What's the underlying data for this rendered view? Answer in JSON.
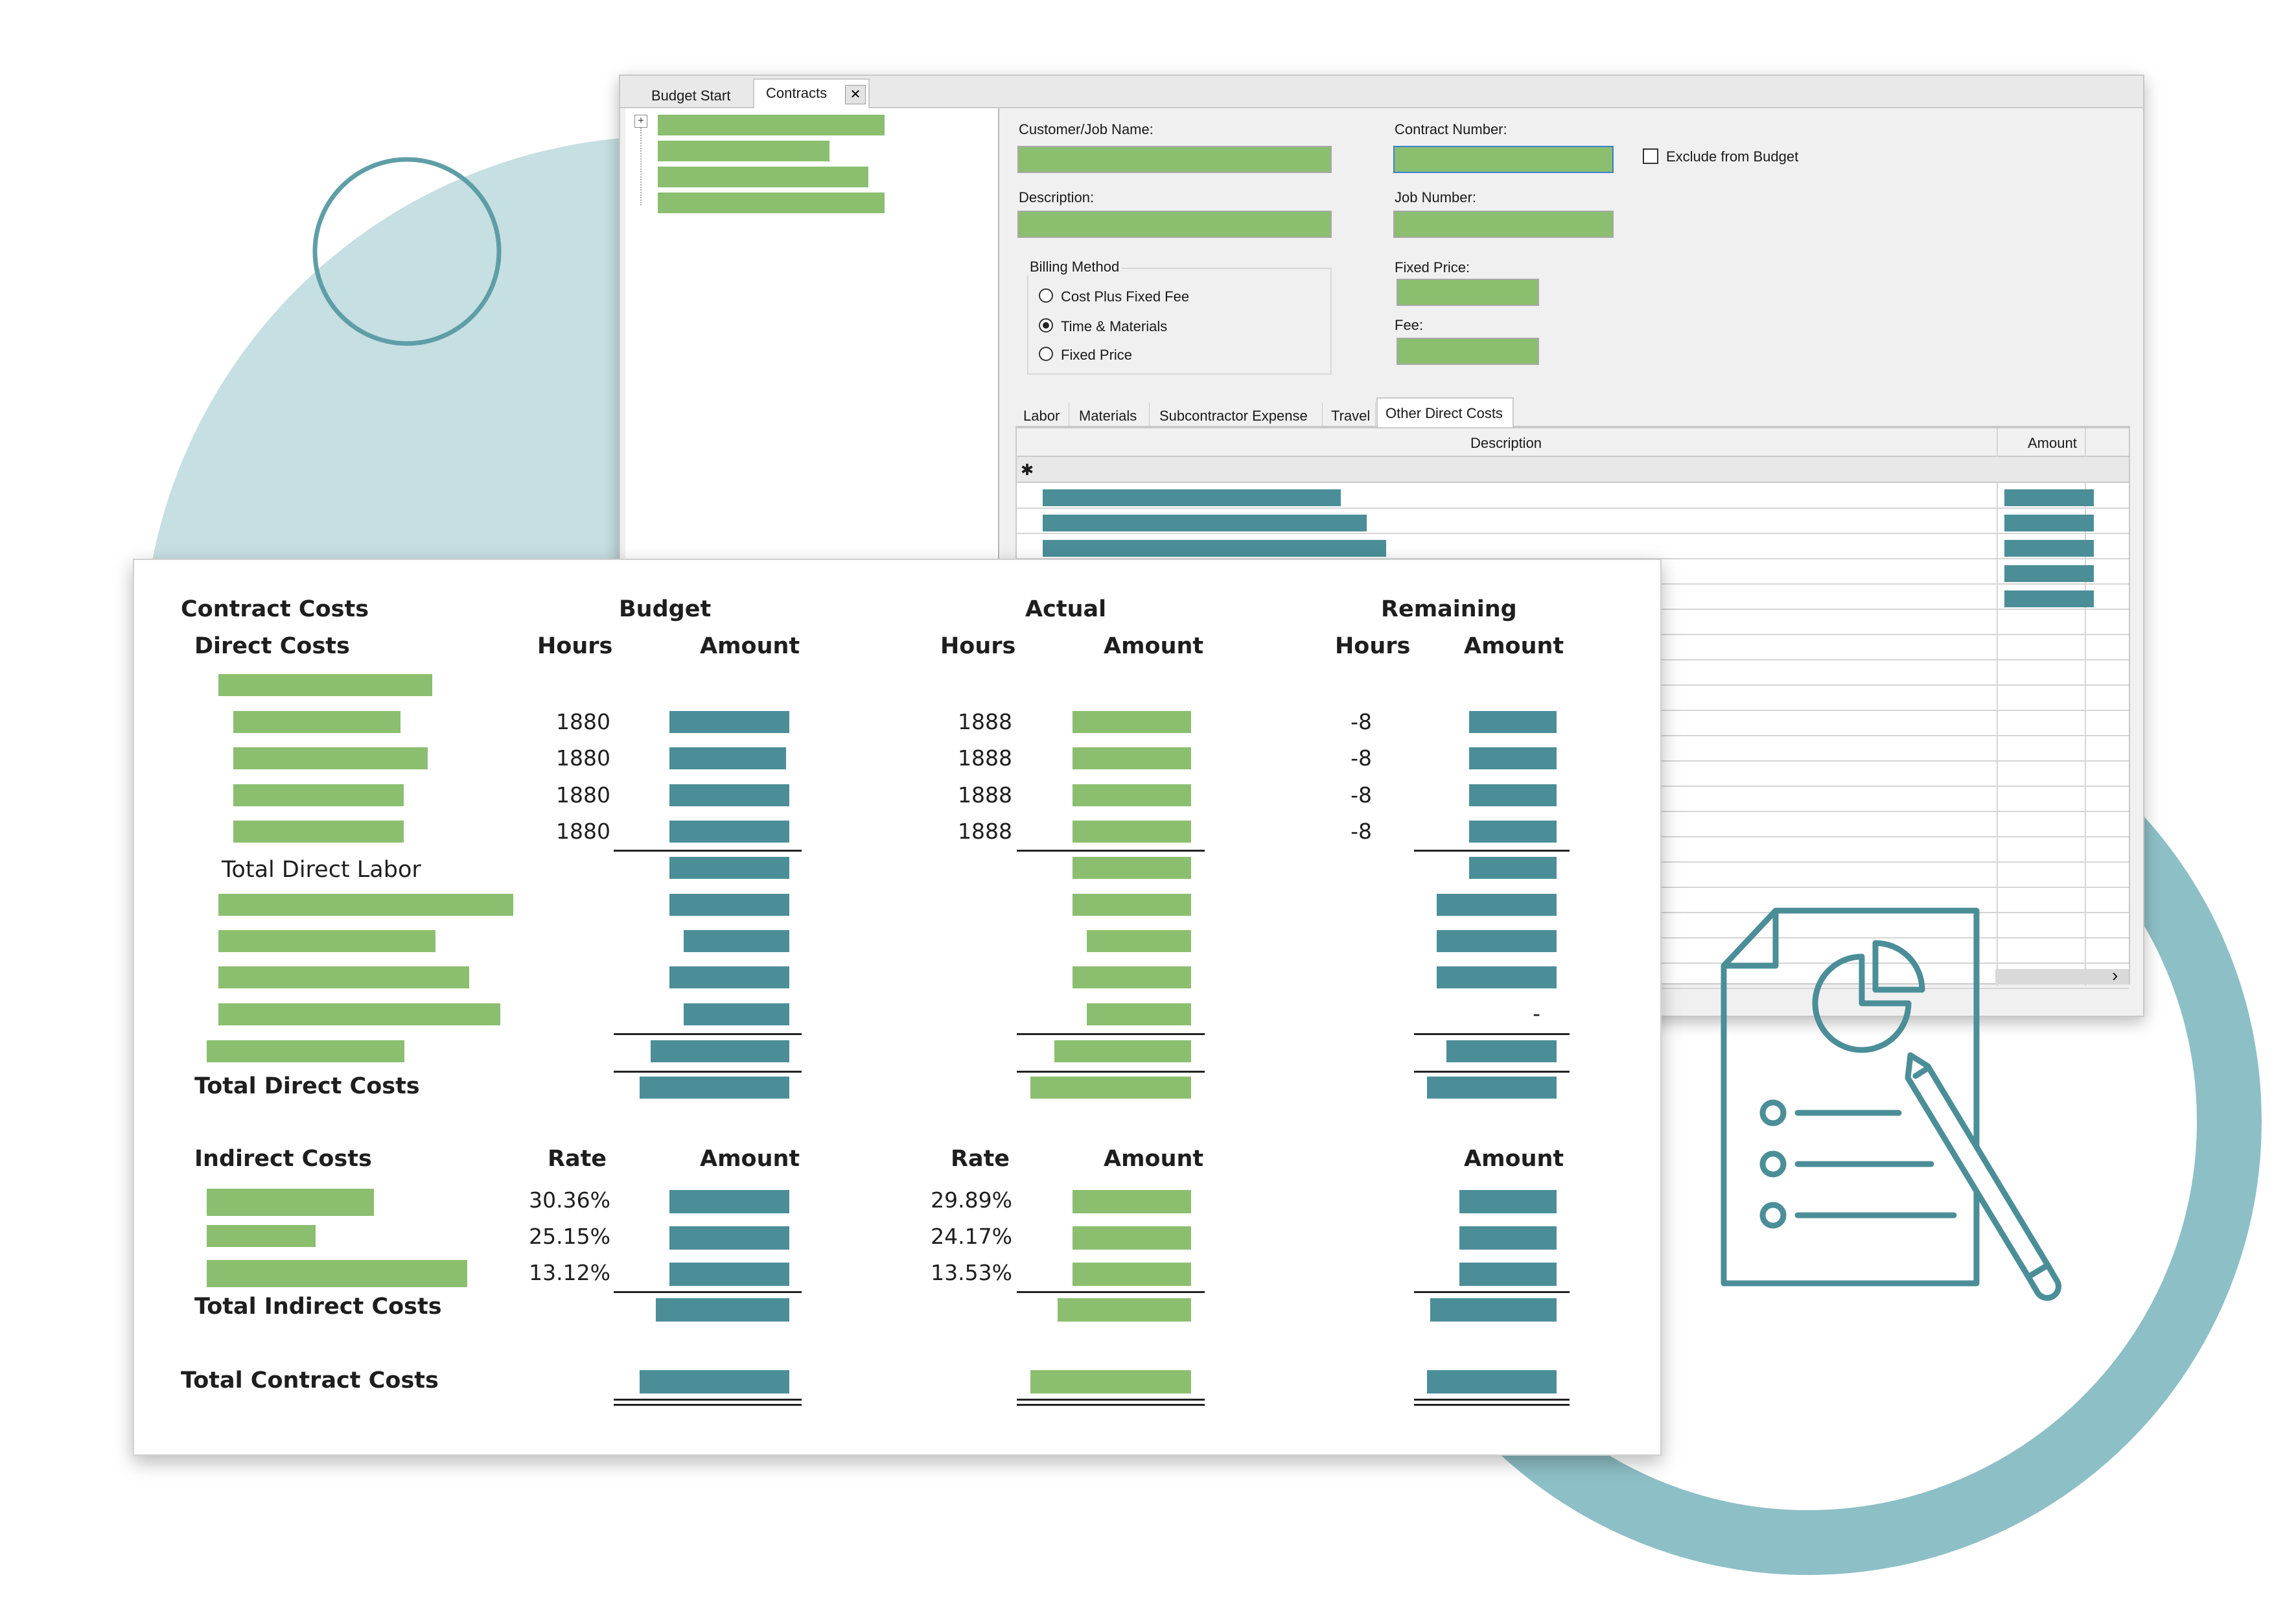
{
  "window": {
    "tabs": [
      {
        "label": "Budget Start"
      },
      {
        "label": "Contracts"
      }
    ],
    "close_glyph": "✕",
    "tree_expand_glyph": "+",
    "form": {
      "customer_job_name_label": "Customer/Job Name:",
      "contract_number_label": "Contract Number:",
      "exclude_from_budget_label": "Exclude from Budget",
      "exclude_from_budget_checked": false,
      "description_label": "Description:",
      "job_number_label": "Job Number:",
      "billing_method_label": "Billing Method",
      "billing_options": [
        {
          "label": "Cost Plus Fixed Fee",
          "selected": false
        },
        {
          "label": "Time & Materials",
          "selected": true
        },
        {
          "label": "Fixed Price",
          "selected": false
        }
      ],
      "fixed_price_label": "Fixed Price:",
      "fee_label": "Fee:"
    },
    "cost_tabs": [
      {
        "label": "Labor"
      },
      {
        "label": "Materials"
      },
      {
        "label": "Subcontractor Expense"
      },
      {
        "label": "Travel"
      },
      {
        "label": "Other Direct Costs"
      }
    ],
    "active_cost_tab": "Other Direct Costs",
    "grid": {
      "col_description": "Description",
      "col_amount": "Amount",
      "new_row_glyph": "✱"
    },
    "scroll_right_glyph": "›"
  },
  "report": {
    "title": "Contract Costs",
    "direct_costs_label": "Direct Costs",
    "group_headers": {
      "budget": "Budget",
      "actual": "Actual",
      "remaining": "Remaining"
    },
    "col_hours": "Hours",
    "col_amount": "Amount",
    "col_rate": "Rate",
    "labor_rows": [
      {
        "budget_hours": "1880",
        "actual_hours": "1888",
        "remaining_hours": "-8"
      },
      {
        "budget_hours": "1880",
        "actual_hours": "1888",
        "remaining_hours": "-8"
      },
      {
        "budget_hours": "1880",
        "actual_hours": "1888",
        "remaining_hours": "-8"
      },
      {
        "budget_hours": "1880",
        "actual_hours": "1888",
        "remaining_hours": "-8"
      }
    ],
    "total_direct_labor_label": "Total Direct Labor",
    "dash_value": "-",
    "total_direct_costs_label": "Total Direct Costs",
    "indirect_costs_label": "Indirect Costs",
    "indirect_rows": [
      {
        "budget_rate": "30.36%",
        "actual_rate": "29.89%"
      },
      {
        "budget_rate": "25.15%",
        "actual_rate": "24.17%"
      },
      {
        "budget_rate": "13.12%",
        "actual_rate": "13.53%"
      }
    ],
    "total_indirect_costs_label": "Total Indirect Costs",
    "total_contract_costs_label": "Total Contract Costs"
  },
  "colors": {
    "green": "#8bbf6f",
    "teal": "#4b8e98",
    "circle_light": "#c6dfe2",
    "circle_ring": "#8dbfc6"
  },
  "icons": [
    "document-chart-checklist-pencil-icon"
  ]
}
